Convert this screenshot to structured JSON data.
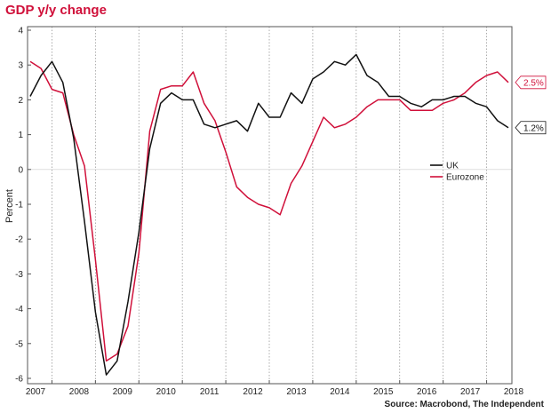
{
  "chart_data": {
    "type": "line",
    "title": "GDP y/y change",
    "source": "Source: Macrobond, The Independent",
    "ylabel": "Percent",
    "xlabel": "",
    "ylim": [
      -6,
      4
    ],
    "yticks": [
      "4",
      "3",
      "2",
      "1",
      "0",
      "-1",
      "-2",
      "-3",
      "-4",
      "-5",
      "-6"
    ],
    "xticks": [
      "2007",
      "2008",
      "2009",
      "2010",
      "2011",
      "2012",
      "2013",
      "2014",
      "2015",
      "2016",
      "2017",
      "2018"
    ],
    "x_start": 2007.0,
    "x_end": 2018.0,
    "step": 0.25,
    "colors": {
      "UK": "#111111",
      "Eurozone": "#d0103a"
    },
    "series": [
      {
        "name": "UK",
        "values": [
          2.1,
          2.7,
          3.1,
          2.5,
          0.9,
          -1.5,
          -4.1,
          -5.9,
          -5.5,
          -3.8,
          -1.8,
          0.6,
          1.9,
          2.2,
          2.0,
          2.0,
          1.3,
          1.2,
          1.3,
          1.4,
          1.1,
          1.9,
          1.5,
          1.5,
          2.2,
          1.9,
          2.6,
          2.8,
          3.1,
          3.0,
          3.3,
          2.7,
          2.5,
          2.1,
          2.1,
          1.9,
          1.8,
          2.0,
          2.0,
          2.1,
          2.1,
          1.9,
          1.8,
          1.4,
          1.2
        ]
      },
      {
        "name": "Eurozone",
        "values": [
          3.1,
          2.9,
          2.3,
          2.2,
          1.0,
          0.1,
          -2.6,
          -5.5,
          -5.3,
          -4.5,
          -2.4,
          1.1,
          2.3,
          2.4,
          2.4,
          2.8,
          1.9,
          1.4,
          0.5,
          -0.5,
          -0.8,
          -1.0,
          -1.1,
          -1.3,
          -0.4,
          0.1,
          0.8,
          1.5,
          1.2,
          1.3,
          1.5,
          1.8,
          2.0,
          2.0,
          2.0,
          1.7,
          1.7,
          1.7,
          1.9,
          2.0,
          2.2,
          2.5,
          2.7,
          2.8,
          2.5
        ]
      }
    ],
    "legend": {
      "placement": "center-right",
      "entries": [
        "UK",
        "Eurozone"
      ]
    },
    "end_labels": [
      {
        "series": "Eurozone",
        "text": "2.5%"
      },
      {
        "series": "UK",
        "text": "1.2%"
      }
    ]
  }
}
